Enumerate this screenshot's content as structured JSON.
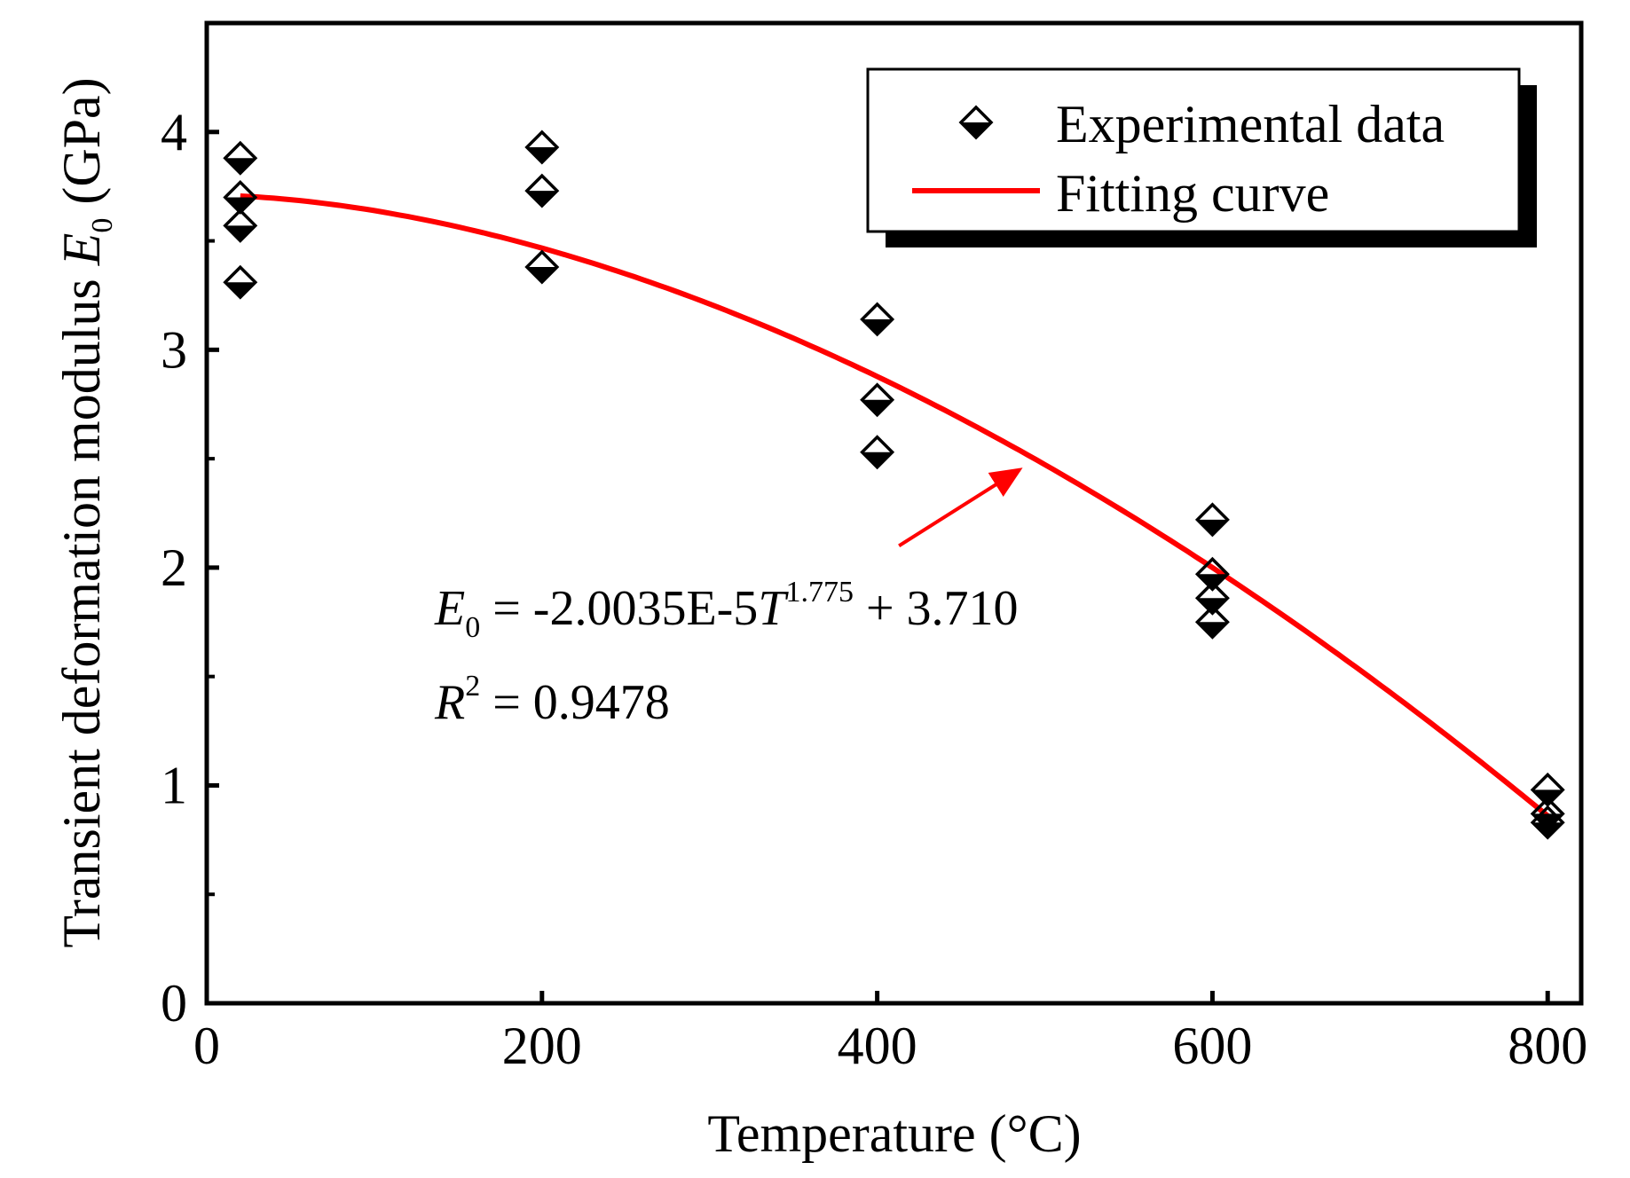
{
  "chart_data": {
    "type": "scatter",
    "title": "",
    "xlabel": "Temperature (°C)",
    "ylabel_prefix": "Transient deformation modulus ",
    "ylabel_var": "E",
    "ylabel_sub": "0",
    "ylabel_unit": " (GPa)",
    "xlim": [
      0,
      820
    ],
    "ylim": [
      0,
      4.5
    ],
    "x_ticks": [
      0,
      200,
      400,
      600,
      800
    ],
    "x_tick_labels": [
      "0",
      "200",
      "400",
      "600",
      "800"
    ],
    "y_ticks": [
      0,
      1,
      2,
      3,
      4
    ],
    "y_tick_labels": [
      "0",
      "1",
      "2",
      "3",
      "4"
    ],
    "y_minor_ticks": [
      0.5,
      1.5,
      2.5,
      3.5
    ],
    "grid": false,
    "legend_position": "top-right",
    "series": [
      {
        "name": "Experimental data",
        "kind": "scatter",
        "marker": "half-filled-diamond",
        "color": "#000000",
        "points": [
          {
            "x": 20,
            "y": 3.88
          },
          {
            "x": 20,
            "y": 3.7
          },
          {
            "x": 20,
            "y": 3.57
          },
          {
            "x": 20,
            "y": 3.31
          },
          {
            "x": 200,
            "y": 3.93
          },
          {
            "x": 200,
            "y": 3.73
          },
          {
            "x": 200,
            "y": 3.38
          },
          {
            "x": 400,
            "y": 3.14
          },
          {
            "x": 400,
            "y": 2.77
          },
          {
            "x": 400,
            "y": 2.53
          },
          {
            "x": 600,
            "y": 2.22
          },
          {
            "x": 600,
            "y": 1.97
          },
          {
            "x": 600,
            "y": 1.86
          },
          {
            "x": 600,
            "y": 1.75
          },
          {
            "x": 800,
            "y": 0.98
          },
          {
            "x": 800,
            "y": 0.87
          },
          {
            "x": 800,
            "y": 0.83
          }
        ]
      },
      {
        "name": "Fitting curve",
        "kind": "line",
        "color": "#ff0000",
        "equation": {
          "a": -2.0035e-05,
          "b": 1.775,
          "c": 3.71
        },
        "x_range": [
          20,
          800
        ]
      }
    ],
    "annotation": {
      "eq_var": "E",
      "eq_sub": "0",
      "eq_mid": " = -2.0035E-5",
      "eq_T": "T",
      "eq_exp": "1.775",
      "eq_tail": " + 3.710",
      "r_var": "R",
      "r_exp": "2",
      "r_tail": " = 0.9478",
      "arrow_color": "#ff0000",
      "arrow_from": {
        "x": 413,
        "y": 2.1
      },
      "arrow_to": {
        "x": 485,
        "y": 2.45
      }
    }
  }
}
